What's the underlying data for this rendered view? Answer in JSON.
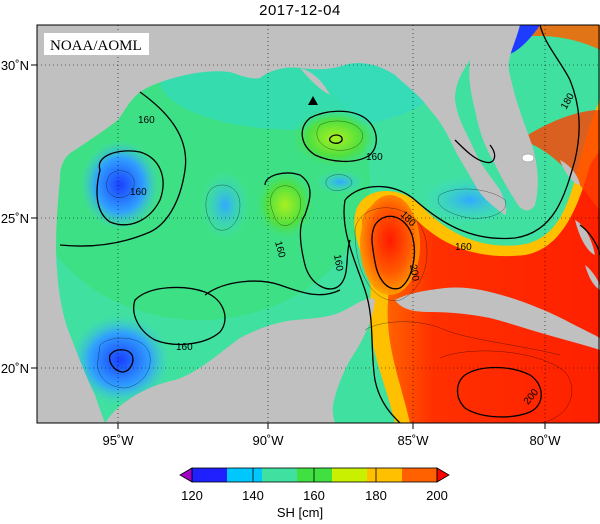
{
  "title": "2017-12-04",
  "watermark": "NOAA/AOML",
  "lon_ticks": [
    "95˚W",
    "90˚W",
    "85˚W",
    "80˚W"
  ],
  "lat_ticks": [
    "30˚N",
    "25˚N",
    "20˚N"
  ],
  "contour_labels": [
    "160",
    "160",
    "160",
    "160",
    "160",
    "160",
    "160",
    "180",
    "180",
    "200",
    "200"
  ],
  "colorbar": {
    "ticks": [
      "120",
      "140",
      "160",
      "180",
      "200"
    ],
    "label": "SH [cm]",
    "colors": [
      "#a000c8",
      "#2020ff",
      "#00c8ff",
      "#40e0a0",
      "#40e040",
      "#c8f000",
      "#ffc000",
      "#ff6000",
      "#ff0000"
    ]
  },
  "colors": {
    "land": "#c0c0c0",
    "low": "#3070ff",
    "mid": "#30e0a0",
    "high": "#ff2000"
  },
  "marker": "triangle-station"
}
